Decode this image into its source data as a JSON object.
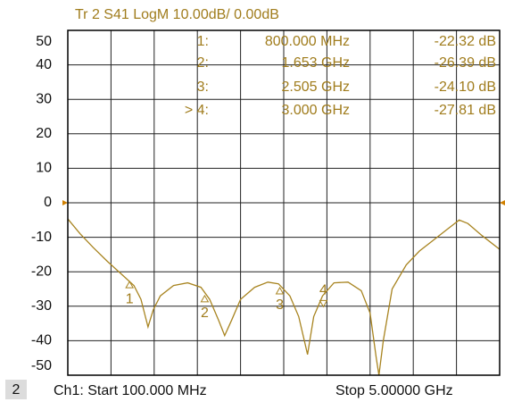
{
  "chart_data": {
    "type": "line",
    "title": "Tr 2  S41 LogM 10.00dB/  0.00dB",
    "footer_left": "Ch1:  Start  100.000 MHz",
    "footer_right": "Stop  5.00000 GHz",
    "channel_badge": "2",
    "color": "#a88420",
    "xlim": [
      0.1,
      5.0
    ],
    "xticks": [
      0.1,
      0.59,
      1.08,
      1.57,
      2.06,
      2.55,
      3.04,
      3.53,
      4.02,
      4.51,
      5.0
    ],
    "ylim": [
      -50,
      50
    ],
    "yticks": [
      50,
      40,
      30,
      20,
      10,
      0,
      -10,
      -20,
      -30,
      -40,
      -50
    ],
    "grid": true,
    "x": [
      0.1,
      0.24,
      0.39,
      0.55,
      0.7,
      0.85,
      0.93,
      1.01,
      1.07,
      1.15,
      1.3,
      1.46,
      1.61,
      1.71,
      1.81,
      1.88,
      1.96,
      2.06,
      2.22,
      2.37,
      2.49,
      2.62,
      2.72,
      2.82,
      2.89,
      2.99,
      3.12,
      3.28,
      3.43,
      3.53,
      3.6,
      3.63,
      3.68,
      3.78,
      3.94,
      4.09,
      4.24,
      4.39,
      4.54,
      4.64,
      4.8,
      5.0
    ],
    "values": [
      -4.7,
      -9,
      -13,
      -17,
      -20.5,
      -24,
      -28,
      -36,
      -31,
      -27,
      -24,
      -23.2,
      -24.5,
      -28,
      -34,
      -38.5,
      -34,
      -28,
      -24.5,
      -23,
      -23.5,
      -27,
      -33,
      -44,
      -33,
      -27,
      -23.2,
      -23,
      -25.5,
      -32,
      -45,
      -50,
      -40,
      -25,
      -18,
      -14,
      -11,
      -8,
      -5,
      -6,
      -9.5,
      -13.5
    ],
    "markers": [
      {
        "name": "1",
        "index": "1:",
        "freq": "800.000  MHz",
        "value_text": "-22.32 dB",
        "x": 0.8,
        "y": -22.32
      },
      {
        "name": "2",
        "index": "2:",
        "freq": "1.653  GHz",
        "value_text": "-26.39 dB",
        "x": 1.653,
        "y": -26.39
      },
      {
        "name": "3",
        "index": "3:",
        "freq": "2.505  GHz",
        "value_text": "-24.10 dB",
        "x": 2.505,
        "y": -24.1
      },
      {
        "name": "4",
        "index": "> 4:",
        "freq": "3.000  GHz",
        "value_text": "-27.81 dB",
        "x": 3.0,
        "y": -27.81
      }
    ]
  }
}
